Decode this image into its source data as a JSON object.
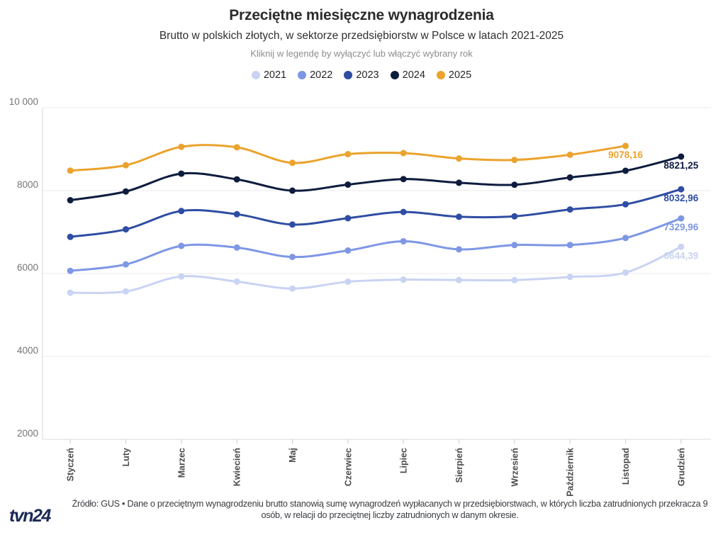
{
  "header": {
    "title": "Przeciętne miesięczne wynagrodzenia",
    "subtitle": "Brutto w polskich złotych, w sektorze przedsiębiorstw w Polsce w latach 2021-2025",
    "hint": "Kliknij w legendę by wyłączyć lub włączyć wybrany rok"
  },
  "legend": {
    "items": [
      {
        "label": "2021",
        "color": "#c9d3f2"
      },
      {
        "label": "2022",
        "color": "#7e97e5"
      },
      {
        "label": "2023",
        "color": "#2e4da3"
      },
      {
        "label": "2024",
        "color": "#0e1c3e"
      },
      {
        "label": "2025",
        "color": "#eba32d"
      }
    ]
  },
  "chart_data": {
    "type": "line",
    "title": "Przeciętne miesięczne wynagrodzenia",
    "x": [
      "Styczeń",
      "Luty",
      "Marzec",
      "Kwiecień",
      "Maj",
      "Czerwiec",
      "Lipiec",
      "Sierpień",
      "Wrzesień",
      "Październik",
      "Listopad",
      "Grudzień"
    ],
    "series": [
      {
        "name": "2021",
        "color": "#c9d3f2",
        "values": [
          5536.8,
          5568.82,
          5929.05,
          5805.72,
          5637.34,
          5802.42,
          5851.87,
          5843.75,
          5841.16,
          5917.15,
          6022.49,
          6644.39
        ],
        "end_label": "6644,39"
      },
      {
        "name": "2022",
        "color": "#7e97e5",
        "values": [
          6064.24,
          6220.04,
          6665.64,
          6626.95,
          6399.59,
          6554.87,
          6778.63,
          6583.03,
          6687.81,
          6687.92,
          6857.96,
          7329.96
        ],
        "end_label": "7329,96"
      },
      {
        "name": "2023",
        "color": "#2e4da3",
        "values": [
          6883.96,
          7065.56,
          7508.34,
          7430.65,
          7181.67,
          7335.2,
          7485.12,
          7368.97,
          7379.88,
          7544.98,
          7670.19,
          8032.96
        ],
        "end_label": "8032,96"
      },
      {
        "name": "2024",
        "color": "#0e1c3e",
        "values": [
          7768.35,
          7978.99,
          8408.79,
          8271.99,
          7999.69,
          8144.83,
          8278.63,
          8189.74,
          8140.98,
          8316.57,
          8478.81,
          8821.25
        ],
        "end_label": "8821,25"
      },
      {
        "name": "2025",
        "color": "#eba32d",
        "values": [
          8482.47,
          8613.14,
          9055.92,
          9045,
          8669.88,
          8880,
          8905,
          8775,
          8740,
          8865,
          9078.16
        ],
        "end_label": "9078,16"
      }
    ],
    "y_axis": {
      "range": [
        2000,
        10000
      ],
      "ticks": [
        {
          "value": 10000,
          "label": "10 000"
        },
        {
          "value": 8000,
          "label": "8000"
        },
        {
          "value": 6000,
          "label": "6000"
        },
        {
          "value": 4000,
          "label": "4000"
        },
        {
          "value": 2000,
          "label": "2000"
        }
      ]
    },
    "grid": true,
    "legend_position": "top"
  },
  "footer": {
    "logo": "tvn24",
    "source_note": "Źródło: GUS • Dane o przeciętnym wynagrodzeniu brutto stanowią sumę wynagrodzeń wypłacanych w przedsiębiorstwach, w których liczba zatrudnionych przekracza 9 osób, w relacji do przeciętnej liczby zatrudnionych w danym okresie."
  }
}
